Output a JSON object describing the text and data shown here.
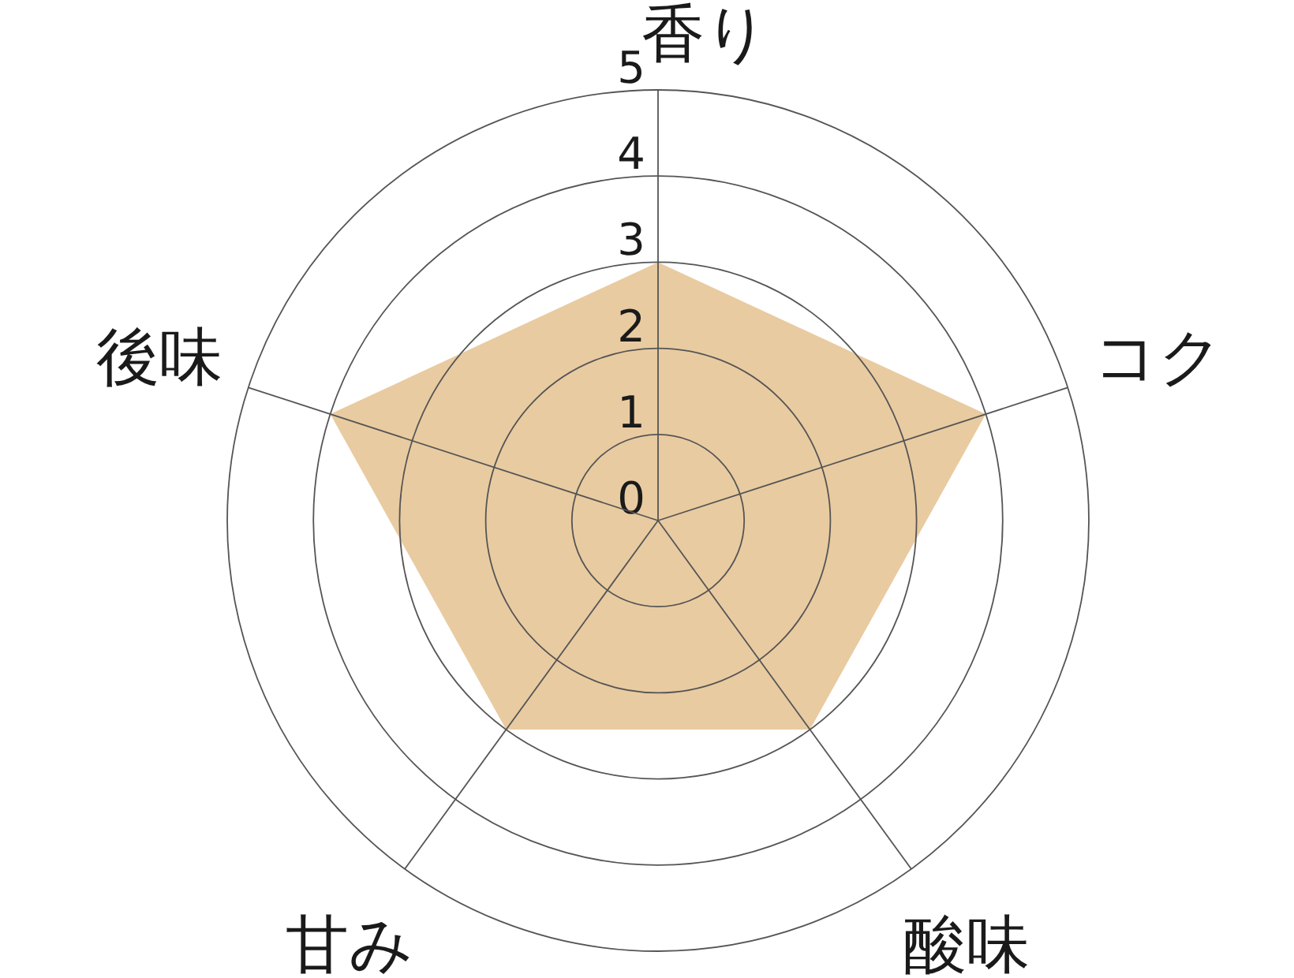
{
  "chart_data": {
    "type": "radar",
    "categories": [
      "香り",
      "コク",
      "酸味",
      "甘み",
      "後味"
    ],
    "series": [
      {
        "color": "#e9cba1",
        "values": [
          3,
          4,
          3,
          3,
          4
        ]
      }
    ],
    "ylim": [
      0,
      5
    ],
    "yticks": [
      0,
      1,
      2,
      3,
      4,
      5
    ],
    "grid": true
  }
}
